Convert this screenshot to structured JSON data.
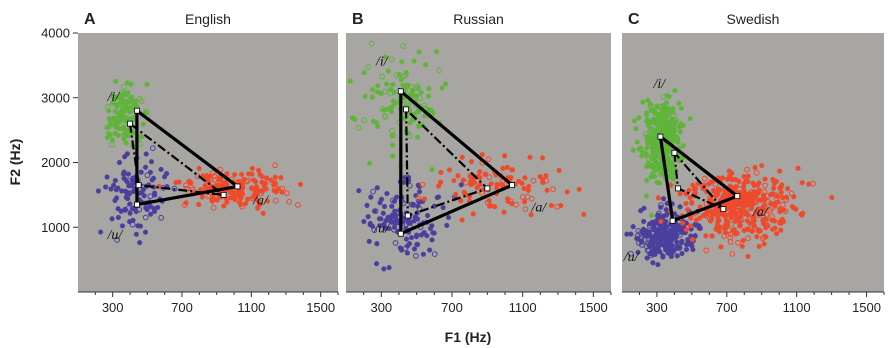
{
  "figure": {
    "xlabel": "F1 (Hz)",
    "ylabel": "F2 (Hz)",
    "y_ticks": [
      1000,
      2000,
      3000,
      4000
    ],
    "x_ticks": [
      300,
      700,
      1100,
      1500
    ]
  },
  "colors": {
    "i": "#5fb53a",
    "u": "#4b3f9e",
    "a": "#ee4a2c",
    "panel_bg": "#a8a6a3",
    "triangle": "#000000"
  },
  "chart_data": [
    {
      "type": "scatter",
      "letter": "A",
      "title": "English",
      "xlabel": "F1 (Hz)",
      "ylabel": "F2 (Hz)",
      "xlim": [
        100,
        1600
      ],
      "ylim": [
        0,
        4000
      ],
      "x_ticks": [
        300,
        700,
        1100,
        1500
      ],
      "y_ticks": [
        1000,
        2000,
        3000,
        4000
      ],
      "series": [
        {
          "name": "/i/",
          "label_pos": [
            270,
            2950
          ],
          "cloud": {
            "cx": 370,
            "cy": 2750,
            "sx": 55,
            "sy": 230,
            "n": 130,
            "seed": 11
          }
        },
        {
          "name": "/u/",
          "label_pos": [
            270,
            820
          ],
          "cloud": {
            "cx": 430,
            "cy": 1450,
            "sx": 80,
            "sy": 280,
            "n": 110,
            "seed": 12
          }
        },
        {
          "name": "/a/",
          "label_pos": [
            1110,
            1350
          ],
          "cloud": {
            "cx": 1000,
            "cy": 1580,
            "sx": 170,
            "sy": 140,
            "n": 170,
            "seed": 13
          }
        }
      ],
      "triangles": [
        {
          "style": "solid",
          "points": [
            [
              440,
              2800
            ],
            [
              440,
              1350
            ],
            [
              1020,
              1630
            ]
          ]
        },
        {
          "style": "dashdot",
          "points": [
            [
              400,
              2600
            ],
            [
              450,
              1650
            ],
            [
              940,
              1500
            ]
          ]
        }
      ]
    },
    {
      "type": "scatter",
      "letter": "B",
      "title": "Russian",
      "xlabel": "F1 (Hz)",
      "ylabel": "F2 (Hz)",
      "xlim": [
        100,
        1600
      ],
      "ylim": [
        0,
        4000
      ],
      "x_ticks": [
        300,
        700,
        1100,
        1500
      ],
      "y_ticks": [
        1000,
        2000,
        3000,
        4000
      ],
      "series": [
        {
          "name": "/i/",
          "label_pos": [
            270,
            3500
          ],
          "cloud": {
            "cx": 430,
            "cy": 3000,
            "sx": 110,
            "sy": 360,
            "n": 120,
            "seed": 21
          }
        },
        {
          "name": "/u/",
          "label_pos": [
            260,
            920
          ],
          "cloud": {
            "cx": 400,
            "cy": 1100,
            "sx": 110,
            "sy": 280,
            "n": 140,
            "seed": 22
          }
        },
        {
          "name": "/a/",
          "label_pos": [
            1150,
            1240
          ],
          "cloud": {
            "cx": 960,
            "cy": 1620,
            "sx": 190,
            "sy": 200,
            "n": 110,
            "seed": 23
          }
        }
      ],
      "triangles": [
        {
          "style": "solid",
          "points": [
            [
              410,
              3100
            ],
            [
              410,
              900
            ],
            [
              1040,
              1650
            ]
          ]
        },
        {
          "style": "dashdot",
          "points": [
            [
              440,
              2820
            ],
            [
              450,
              1180
            ],
            [
              900,
              1600
            ]
          ]
        }
      ]
    },
    {
      "type": "scatter",
      "letter": "C",
      "title": "Swedish",
      "xlabel": "F1 (Hz)",
      "ylabel": "F2 (Hz)",
      "xlim": [
        100,
        1600
      ],
      "ylim": [
        0,
        4000
      ],
      "x_ticks": [
        300,
        700,
        1100,
        1500
      ],
      "y_ticks": [
        1000,
        2000,
        3000,
        4000
      ],
      "series": [
        {
          "name": "/i/",
          "label_pos": [
            280,
            3150
          ],
          "cloud": {
            "cx": 330,
            "cy": 2350,
            "sx": 55,
            "sy": 320,
            "n": 320,
            "seed": 31
          }
        },
        {
          "name": "/u/",
          "label_pos": [
            110,
            480
          ],
          "cloud": {
            "cx": 340,
            "cy": 900,
            "sx": 80,
            "sy": 200,
            "n": 260,
            "seed": 32
          }
        },
        {
          "name": "/a/",
          "label_pos": [
            850,
            1170
          ],
          "cloud": {
            "cx": 760,
            "cy": 1350,
            "sx": 150,
            "sy": 260,
            "n": 420,
            "seed": 33
          }
        }
      ],
      "triangles": [
        {
          "style": "solid",
          "points": [
            [
              320,
              2400
            ],
            [
              390,
              1100
            ],
            [
              760,
              1480
            ]
          ]
        },
        {
          "style": "dashdot",
          "points": [
            [
              400,
              2150
            ],
            [
              420,
              1600
            ],
            [
              680,
              1280
            ]
          ]
        }
      ]
    }
  ]
}
